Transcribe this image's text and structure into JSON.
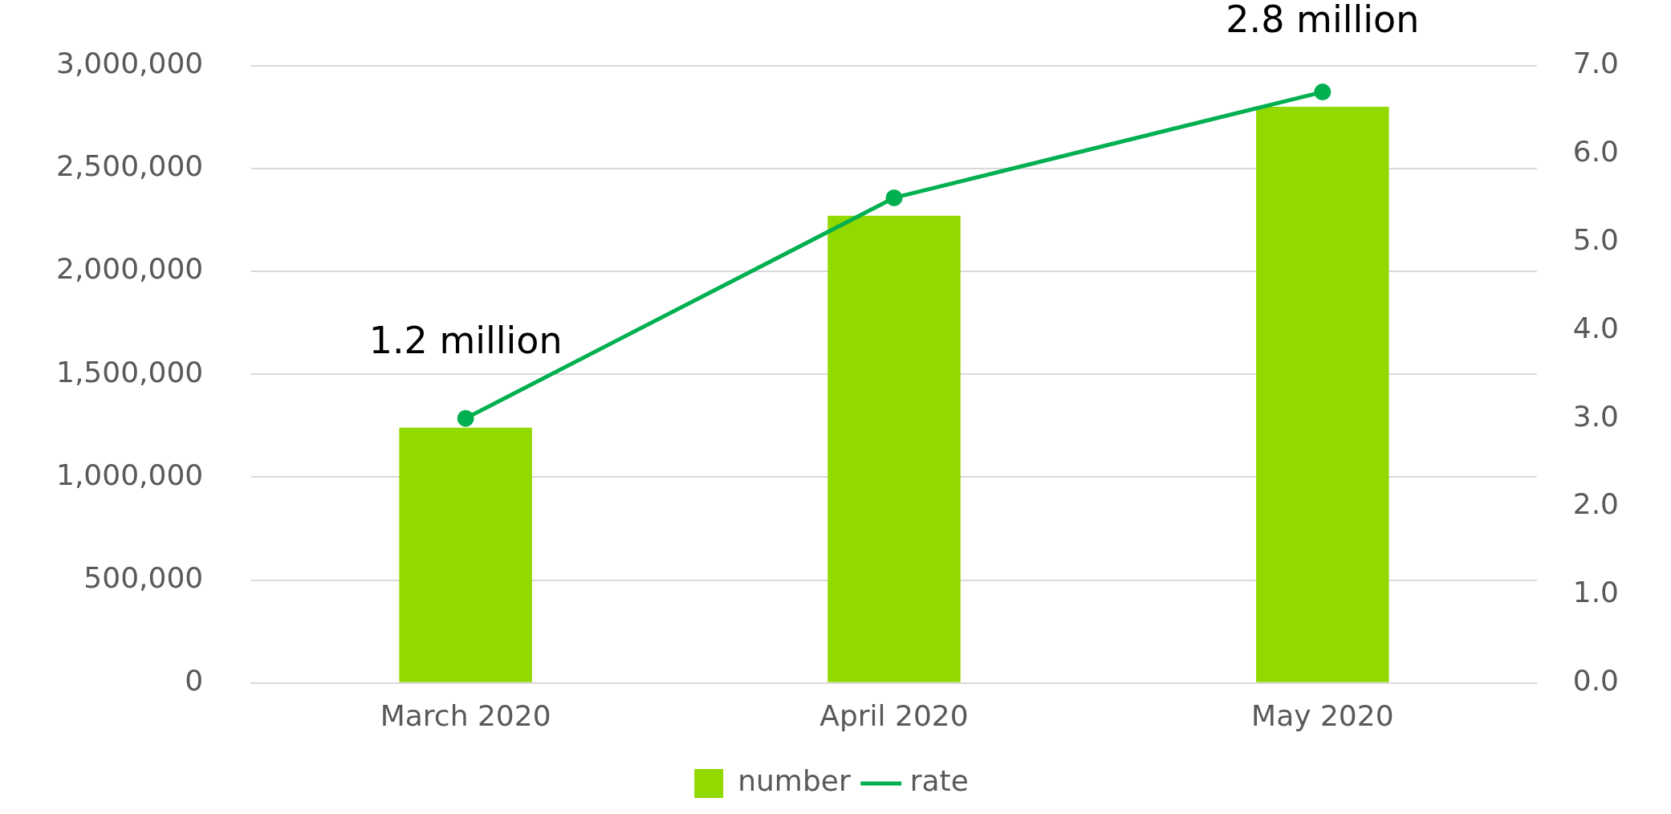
{
  "chart_data": {
    "type": "bar",
    "categories": [
      "March 2020",
      "April 2020",
      "May 2020"
    ],
    "series": [
      {
        "name": "number",
        "color": "#92d900",
        "values": [
          1240000,
          2270000,
          2800000
        ]
      },
      {
        "name": "rate",
        "type": "line",
        "axis": "y2",
        "color": "#00b050",
        "values": [
          3.0,
          5.5,
          6.7
        ],
        "marker": "circle"
      }
    ],
    "ylim": [
      0,
      3000000
    ],
    "yticks": [
      {
        "value": 0,
        "label": "0"
      },
      {
        "value": 500000,
        "label": "500,000"
      },
      {
        "value": 1000000,
        "label": "1,000,000"
      },
      {
        "value": 1500000,
        "label": "1,500,000"
      },
      {
        "value": 2000000,
        "label": "2,000,000"
      },
      {
        "value": 2500000,
        "label": "2,500,000"
      },
      {
        "value": 3000000,
        "label": "3,000,000"
      }
    ],
    "y2lim": [
      0,
      7
    ],
    "y2ticks": [
      {
        "value": 0,
        "label": "0.0"
      },
      {
        "value": 1,
        "label": "1.0"
      },
      {
        "value": 2,
        "label": "2.0"
      },
      {
        "value": 3,
        "label": "3.0"
      },
      {
        "value": 4,
        "label": "4.0"
      },
      {
        "value": 5,
        "label": "5.0"
      },
      {
        "value": 6,
        "label": "6.0"
      },
      {
        "value": 7,
        "label": "7.0"
      }
    ],
    "annotations": [
      {
        "text": "1.2 million",
        "x": "March 2020",
        "y": 1240000
      },
      {
        "text": "2.8 million",
        "x": "May 2020",
        "y": 2800000
      }
    ],
    "grid": "y",
    "legend": "bottom"
  }
}
